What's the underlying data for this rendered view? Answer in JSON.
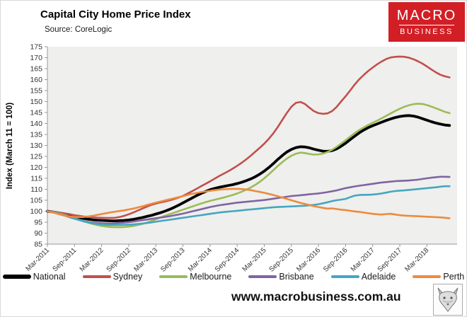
{
  "header": {
    "title": "Capital City Home Price Index",
    "subtitle": "Source: CoreLogic",
    "logo": {
      "line1": "MACRO",
      "line2": "BUSINESS",
      "bg_color": "#d21f26"
    }
  },
  "footer": {
    "url": "www.macrobusiness.com.au"
  },
  "chart_data": {
    "type": "line",
    "title": "Capital City Home Price Index",
    "source": "Source: CoreLogic",
    "ylabel": "Index (March 11 = 100)",
    "ylim": [
      85,
      175
    ],
    "y_ticks": [
      175,
      170,
      165,
      160,
      155,
      150,
      145,
      140,
      135,
      130,
      125,
      120,
      115,
      110,
      105,
      100,
      95,
      90,
      85
    ],
    "x_tick_labels": [
      "Mar-2011",
      "Sep-2011",
      "Mar-2012",
      "Sep-2012",
      "Mar-2013",
      "Sep-2013",
      "Mar-2014",
      "Sep-2014",
      "Mar-2015",
      "Sep-2015",
      "Mar-2016",
      "Sep-2016",
      "Mar-2017",
      "Sep-2017",
      "Mar-2018"
    ],
    "x_unit": "monthly from Mar-2011 to Aug-2018",
    "grid": false,
    "plot_bg": "#efefed",
    "legend_position": "bottom",
    "series": [
      {
        "name": "National",
        "color": "#000000",
        "width": 3.8,
        "values": [
          100,
          99.7,
          99.4,
          99.0,
          98.5,
          98.0,
          97.5,
          97.1,
          96.7,
          96.4,
          96.1,
          95.9,
          95.8,
          95.7,
          95.6,
          95.6,
          95.7,
          95.8,
          96.0,
          96.3,
          96.7,
          97.1,
          97.6,
          98.1,
          98.7,
          99.3,
          100.0,
          100.8,
          101.7,
          102.7,
          103.8,
          104.9,
          106.0,
          107.1,
          108.1,
          109.0,
          109.8,
          110.4,
          110.9,
          111.3,
          111.7,
          112.1,
          112.6,
          113.2,
          113.9,
          114.7,
          115.7,
          116.9,
          118.3,
          119.9,
          121.7,
          123.6,
          125.4,
          127.0,
          128.2,
          129.0,
          129.4,
          129.3,
          128.9,
          128.3,
          127.8,
          127.4,
          127.3,
          127.6,
          128.4,
          129.6,
          131.0,
          132.6,
          134.2,
          135.7,
          137.0,
          138.1,
          139.0,
          139.8,
          140.6,
          141.4,
          142.1,
          142.7,
          143.2,
          143.5,
          143.6,
          143.4,
          142.9,
          142.2,
          141.5,
          140.8,
          140.2,
          139.7,
          139.3,
          139.1
        ]
      },
      {
        "name": "Sydney",
        "color": "#C0504D",
        "width": 2.6,
        "values": [
          100,
          99.8,
          99.6,
          99.3,
          99.0,
          98.6,
          98.2,
          97.9,
          97.6,
          97.4,
          97.2,
          97.1,
          97.0,
          96.9,
          96.9,
          97.0,
          97.4,
          97.9,
          98.6,
          99.4,
          100.3,
          101.2,
          102.1,
          102.9,
          103.5,
          104.0,
          104.4,
          104.9,
          105.5,
          106.2,
          107.0,
          108.0,
          109.1,
          110.2,
          111.4,
          112.5,
          113.6,
          114.8,
          116.0,
          117.1,
          118.2,
          119.4,
          120.7,
          122.1,
          123.6,
          125.3,
          127.1,
          128.9,
          130.8,
          133.0,
          135.5,
          138.4,
          141.6,
          144.8,
          147.6,
          149.4,
          149.8,
          148.9,
          147.2,
          145.6,
          144.7,
          144.4,
          144.6,
          145.6,
          147.5,
          150.0,
          152.4,
          155.0,
          157.7,
          160.1,
          162.1,
          163.9,
          165.5,
          167.0,
          168.3,
          169.4,
          170.1,
          170.4,
          170.5,
          170.4,
          170.0,
          169.3,
          168.4,
          167.3,
          166.0,
          164.6,
          163.3,
          162.2,
          161.5,
          161.0
        ]
      },
      {
        "name": "Melbourne",
        "color": "#9BBB59",
        "width": 2.6,
        "values": [
          100,
          99.7,
          99.3,
          98.8,
          98.2,
          97.5,
          96.8,
          96.1,
          95.4,
          94.8,
          94.2,
          93.7,
          93.3,
          93.0,
          92.8,
          92.7,
          92.7,
          92.8,
          93.0,
          93.3,
          93.7,
          94.2,
          94.8,
          95.5,
          96.3,
          97.1,
          97.9,
          98.6,
          99.3,
          100.0,
          100.7,
          101.4,
          102.1,
          102.8,
          103.5,
          104.1,
          104.7,
          105.2,
          105.7,
          106.2,
          106.8,
          107.4,
          108.1,
          108.9,
          109.8,
          110.8,
          112.0,
          113.4,
          115.0,
          116.8,
          118.7,
          120.6,
          122.4,
          124.0,
          125.3,
          126.2,
          126.7,
          126.5,
          126.1,
          125.8,
          125.9,
          126.3,
          127.0,
          128.0,
          129.3,
          130.8,
          132.4,
          134.0,
          135.6,
          137.0,
          138.2,
          139.3,
          140.3,
          141.3,
          142.4,
          143.5,
          144.6,
          145.7,
          146.7,
          147.6,
          148.3,
          148.8,
          149.0,
          148.9,
          148.4,
          147.7,
          146.9,
          146.1,
          145.3,
          144.7
        ]
      },
      {
        "name": "Brisbane",
        "color": "#8064A2",
        "width": 2.6,
        "values": [
          100,
          99.6,
          99.1,
          98.5,
          97.9,
          97.2,
          96.6,
          96.0,
          95.5,
          95.1,
          94.8,
          94.6,
          94.5,
          94.4,
          94.4,
          94.5,
          94.6,
          94.8,
          95.0,
          95.3,
          95.6,
          95.9,
          96.2,
          96.5,
          96.8,
          97.1,
          97.4,
          97.7,
          98.1,
          98.5,
          98.9,
          99.4,
          99.9,
          100.4,
          100.9,
          101.4,
          101.9,
          102.3,
          102.7,
          103.0,
          103.3,
          103.6,
          103.9,
          104.1,
          104.3,
          104.5,
          104.7,
          104.9,
          105.1,
          105.4,
          105.7,
          106.0,
          106.3,
          106.6,
          106.9,
          107.1,
          107.3,
          107.5,
          107.7,
          107.9,
          108.1,
          108.4,
          108.7,
          109.1,
          109.5,
          110.0,
          110.5,
          110.9,
          111.3,
          111.6,
          111.9,
          112.2,
          112.5,
          112.8,
          113.1,
          113.3,
          113.5,
          113.7,
          113.8,
          113.9,
          114.0,
          114.2,
          114.4,
          114.7,
          115.0,
          115.3,
          115.5,
          115.7,
          115.7,
          115.6
        ]
      },
      {
        "name": "Adelaide",
        "color": "#45A6C1",
        "width": 2.6,
        "values": [
          100,
          99.6,
          99.2,
          98.6,
          98.0,
          97.3,
          96.6,
          96.0,
          95.4,
          94.9,
          94.5,
          94.2,
          94.0,
          93.8,
          93.7,
          93.7,
          93.7,
          93.8,
          93.9,
          94.0,
          94.2,
          94.4,
          94.6,
          94.9,
          95.2,
          95.5,
          95.8,
          96.1,
          96.4,
          96.7,
          97.0,
          97.3,
          97.6,
          97.9,
          98.2,
          98.5,
          98.8,
          99.1,
          99.4,
          99.6,
          99.8,
          100.0,
          100.2,
          100.4,
          100.6,
          100.8,
          101.0,
          101.2,
          101.4,
          101.6,
          101.8,
          101.9,
          102.0,
          102.1,
          102.2,
          102.3,
          102.4,
          102.5,
          102.7,
          102.9,
          103.2,
          103.6,
          104.1,
          104.6,
          105.0,
          105.3,
          105.6,
          106.4,
          107.1,
          107.4,
          107.5,
          107.5,
          107.6,
          107.8,
          108.1,
          108.5,
          108.9,
          109.2,
          109.4,
          109.5,
          109.7,
          109.9,
          110.1,
          110.3,
          110.5,
          110.7,
          110.9,
          111.2,
          111.4,
          111.4
        ]
      },
      {
        "name": "Perth",
        "color": "#ED8A3F",
        "width": 2.6,
        "values": [
          100,
          99.5,
          99.0,
          98.4,
          97.9,
          97.6,
          97.4,
          97.3,
          97.4,
          97.6,
          97.9,
          98.3,
          98.7,
          99.1,
          99.5,
          99.8,
          100.1,
          100.4,
          100.8,
          101.2,
          101.7,
          102.2,
          102.8,
          103.4,
          103.9,
          104.4,
          104.9,
          105.4,
          105.9,
          106.4,
          106.9,
          107.4,
          107.9,
          108.3,
          108.7,
          109.0,
          109.3,
          109.6,
          109.8,
          110.0,
          110.1,
          110.2,
          110.2,
          110.1,
          109.9,
          109.6,
          109.2,
          108.8,
          108.4,
          107.9,
          107.4,
          106.8,
          106.2,
          105.6,
          105.0,
          104.4,
          103.8,
          103.3,
          102.8,
          102.3,
          101.9,
          101.5,
          101.2,
          101.3,
          101.0,
          100.7,
          100.5,
          100.2,
          99.9,
          99.7,
          99.4,
          99.1,
          98.8,
          98.6,
          98.5,
          98.7,
          98.8,
          98.5,
          98.2,
          98.0,
          97.9,
          97.8,
          97.7,
          97.6,
          97.5,
          97.4,
          97.3,
          97.2,
          97.0,
          96.8
        ]
      }
    ]
  }
}
